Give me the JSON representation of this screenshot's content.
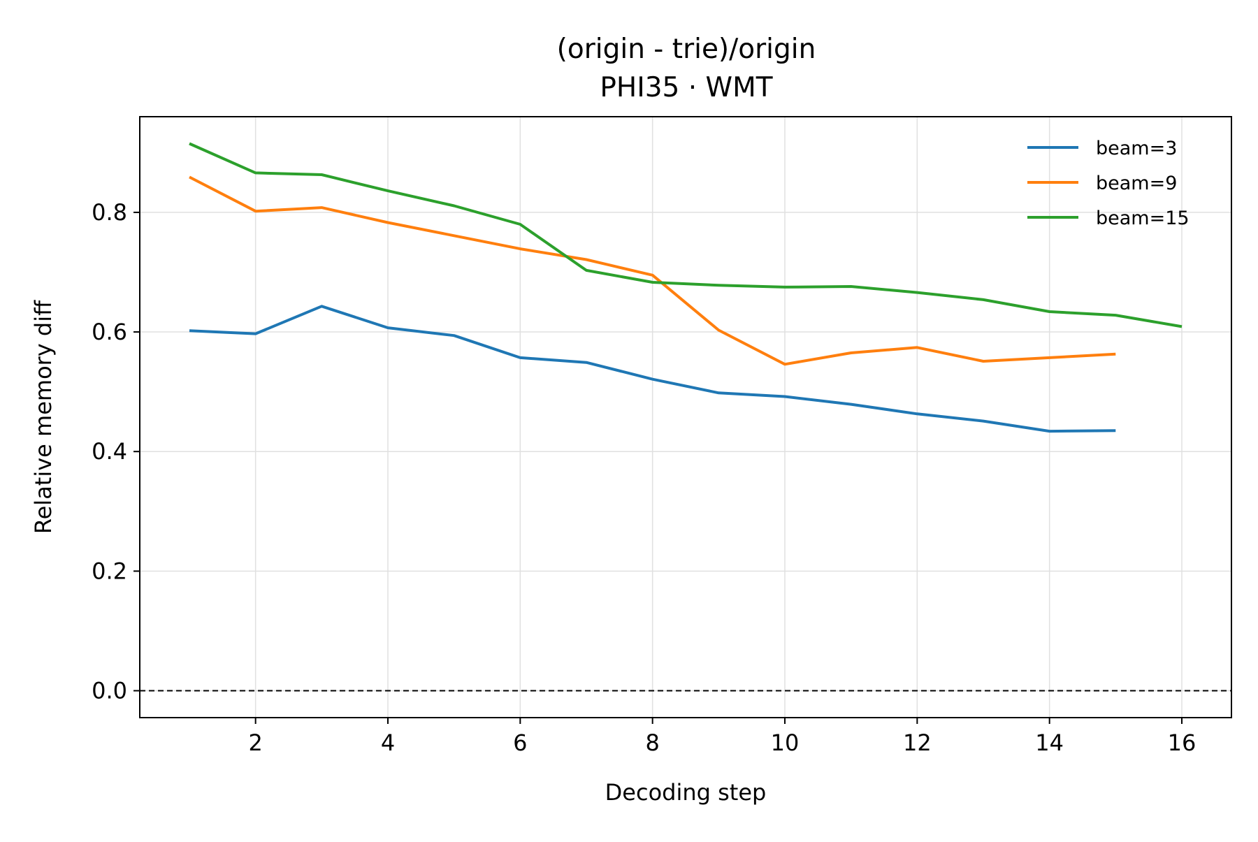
{
  "chart_data": {
    "type": "line",
    "title": "(origin - trie)/origin",
    "subtitle": "PHI35 · WMT",
    "xlabel": "Decoding step",
    "ylabel": "Relative memory diff",
    "xlim": [
      0.25,
      16.75
    ],
    "ylim": [
      -0.045,
      0.96
    ],
    "xticks": [
      2,
      4,
      6,
      8,
      10,
      12,
      14,
      16
    ],
    "yticks": [
      0.0,
      0.2,
      0.4,
      0.6,
      0.8
    ],
    "xtick_labels": [
      "2",
      "4",
      "6",
      "8",
      "10",
      "12",
      "14",
      "16"
    ],
    "ytick_labels": [
      "0.0",
      "0.2",
      "0.4",
      "0.6",
      "0.8"
    ],
    "grid": true,
    "legend_position": "top-right",
    "reference_line": {
      "y": 0.0,
      "style": "dashed",
      "color": "#000000"
    },
    "series": [
      {
        "name": "beam=3",
        "color": "#1f77b4",
        "x": [
          1,
          2,
          3,
          4,
          5,
          6,
          7,
          8,
          9,
          10,
          11,
          12,
          13,
          14,
          15
        ],
        "values": [
          0.602,
          0.597,
          0.643,
          0.607,
          0.594,
          0.557,
          0.549,
          0.521,
          0.498,
          0.492,
          0.479,
          0.463,
          0.451,
          0.434,
          0.435
        ]
      },
      {
        "name": "beam=9",
        "color": "#ff7f0e",
        "x": [
          1,
          2,
          3,
          4,
          5,
          6,
          7,
          8,
          9,
          10,
          11,
          12,
          13,
          14,
          15
        ],
        "values": [
          0.859,
          0.802,
          0.808,
          0.783,
          0.761,
          0.739,
          0.721,
          0.695,
          0.603,
          0.546,
          0.565,
          0.574,
          0.551,
          0.557,
          0.563
        ]
      },
      {
        "name": "beam=15",
        "color": "#2ca02c",
        "x": [
          1,
          2,
          3,
          4,
          5,
          6,
          7,
          8,
          9,
          10,
          11,
          12,
          13,
          14,
          15,
          16
        ],
        "values": [
          0.915,
          0.866,
          0.863,
          0.836,
          0.811,
          0.78,
          0.703,
          0.683,
          0.678,
          0.675,
          0.676,
          0.666,
          0.654,
          0.634,
          0.628,
          0.609
        ]
      }
    ]
  }
}
